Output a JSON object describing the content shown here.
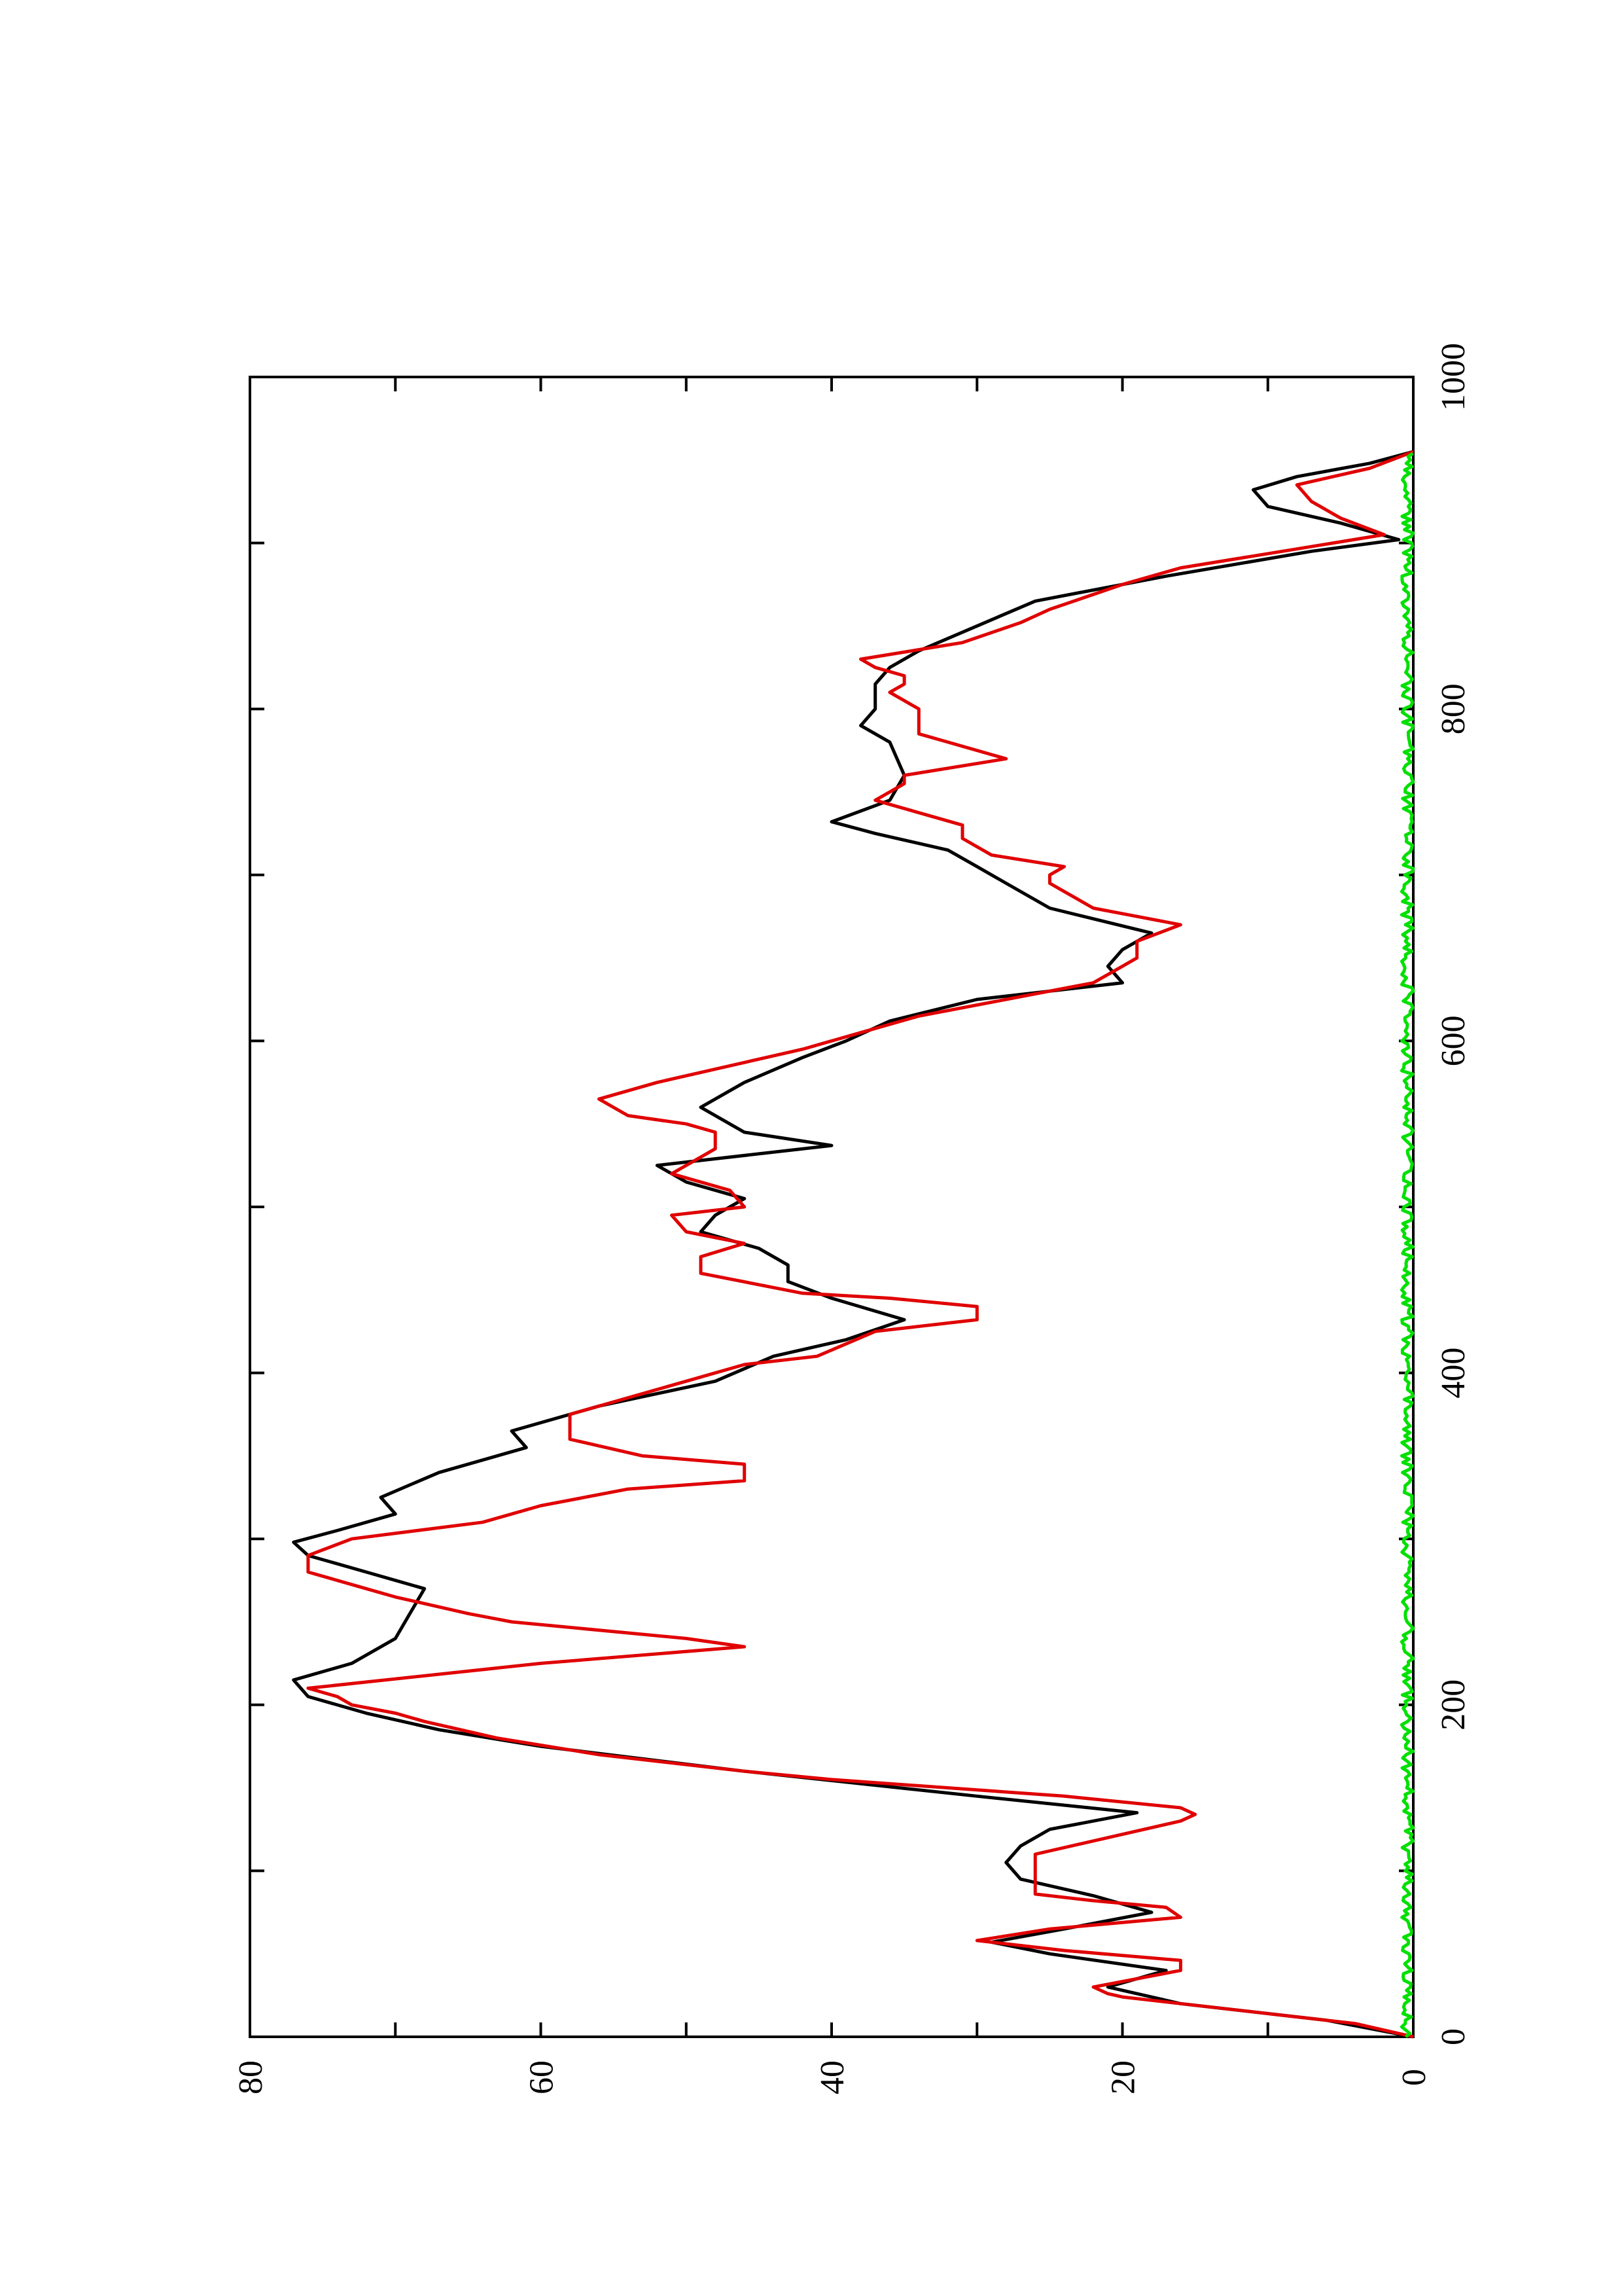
{
  "chart_data": {
    "type": "line",
    "title": "",
    "xlabel": "",
    "ylabel": "",
    "orientation": "rotated 90° counter-clockwise (x axis runs bottom to top, y axis runs right to left)",
    "xlim": [
      0,
      1000
    ],
    "ylim": [
      0,
      80
    ],
    "x_ticks": [
      0,
      200,
      400,
      600,
      800,
      1000
    ],
    "x_tick_labels": [
      "0",
      "200",
      "400",
      "600",
      "800",
      "1000"
    ],
    "y_ticks": [
      0,
      20,
      40,
      60,
      80
    ],
    "y_tick_labels": [
      "0",
      "20",
      "40",
      "60",
      "80"
    ],
    "x_minor_ticks": [
      100,
      300,
      500,
      700,
      900
    ],
    "y_minor_ticks": [
      10,
      30,
      50,
      70
    ],
    "grid": false,
    "legend": "none",
    "series": [
      {
        "color": "#000000",
        "points": [
          [
            0,
            0
          ],
          [
            10,
            6
          ],
          [
            20,
            16
          ],
          [
            30,
            21
          ],
          [
            40,
            17
          ],
          [
            50,
            25
          ],
          [
            57,
            29
          ],
          [
            65,
            24
          ],
          [
            75,
            18
          ],
          [
            85,
            22
          ],
          [
            95,
            27
          ],
          [
            105,
            28
          ],
          [
            115,
            27
          ],
          [
            125,
            25
          ],
          [
            135,
            19
          ],
          [
            145,
            30
          ],
          [
            160,
            46
          ],
          [
            175,
            60
          ],
          [
            185,
            67
          ],
          [
            195,
            72
          ],
          [
            205,
            76
          ],
          [
            215,
            77
          ],
          [
            225,
            73
          ],
          [
            240,
            70
          ],
          [
            255,
            69
          ],
          [
            270,
            68
          ],
          [
            280,
            72
          ],
          [
            290,
            76
          ],
          [
            298,
            77
          ],
          [
            305,
            74
          ],
          [
            315,
            70
          ],
          [
            325,
            71
          ],
          [
            340,
            67
          ],
          [
            355,
            61
          ],
          [
            365,
            62
          ],
          [
            380,
            56
          ],
          [
            395,
            48
          ],
          [
            410,
            44
          ],
          [
            420,
            39
          ],
          [
            432,
            35
          ],
          [
            445,
            40
          ],
          [
            455,
            43
          ],
          [
            465,
            43
          ],
          [
            475,
            45
          ],
          [
            485,
            49
          ],
          [
            495,
            48
          ],
          [
            505,
            46
          ],
          [
            515,
            50
          ],
          [
            525,
            52
          ],
          [
            537,
            40
          ],
          [
            545,
            46
          ],
          [
            560,
            49
          ],
          [
            575,
            46
          ],
          [
            590,
            42
          ],
          [
            600,
            39
          ],
          [
            612,
            36
          ],
          [
            625,
            30
          ],
          [
            635,
            20
          ],
          [
            645,
            21
          ],
          [
            655,
            20
          ],
          [
            665,
            18
          ],
          [
            680,
            25
          ],
          [
            695,
            28
          ],
          [
            705,
            30
          ],
          [
            715,
            32
          ],
          [
            725,
            37
          ],
          [
            732,
            40
          ],
          [
            745,
            36
          ],
          [
            760,
            35
          ],
          [
            780,
            36
          ],
          [
            790,
            38
          ],
          [
            800,
            37
          ],
          [
            815,
            37
          ],
          [
            825,
            36
          ],
          [
            835,
            34
          ],
          [
            850,
            30
          ],
          [
            865,
            26
          ],
          [
            880,
            17
          ],
          [
            895,
            7
          ],
          [
            902,
            1
          ],
          [
            912,
            5
          ],
          [
            922,
            10
          ],
          [
            932,
            11
          ],
          [
            940,
            8
          ],
          [
            948,
            3
          ],
          [
            955,
            0
          ]
        ]
      },
      {
        "color": "#e00000",
        "points": [
          [
            0,
            0
          ],
          [
            8,
            4
          ],
          [
            12,
            8
          ],
          [
            20,
            16
          ],
          [
            24,
            20
          ],
          [
            26,
            21
          ],
          [
            30,
            22
          ],
          [
            40,
            16
          ],
          [
            46,
            16
          ],
          [
            52,
            24
          ],
          [
            55,
            27
          ],
          [
            58,
            30
          ],
          [
            65,
            25
          ],
          [
            72,
            16
          ],
          [
            78,
            17
          ],
          [
            82,
            22
          ],
          [
            86,
            26
          ],
          [
            110,
            26
          ],
          [
            130,
            16
          ],
          [
            134,
            15
          ],
          [
            138,
            16
          ],
          [
            145,
            24
          ],
          [
            155,
            40
          ],
          [
            160,
            46
          ],
          [
            170,
            56
          ],
          [
            180,
            63
          ],
          [
            190,
            68
          ],
          [
            195,
            70
          ],
          [
            200,
            73
          ],
          [
            205,
            74
          ],
          [
            210,
            76
          ],
          [
            225,
            60
          ],
          [
            235,
            46
          ],
          [
            240,
            50
          ],
          [
            250,
            62
          ],
          [
            255,
            65
          ],
          [
            265,
            70
          ],
          [
            270,
            72
          ],
          [
            280,
            76
          ],
          [
            290,
            76
          ],
          [
            300,
            73
          ],
          [
            310,
            64
          ],
          [
            320,
            60
          ],
          [
            330,
            54
          ],
          [
            335,
            46
          ],
          [
            345,
            46
          ],
          [
            350,
            53
          ],
          [
            360,
            58
          ],
          [
            375,
            58
          ],
          [
            385,
            54
          ],
          [
            395,
            50
          ],
          [
            405,
            46
          ],
          [
            410,
            41
          ],
          [
            425,
            37
          ],
          [
            432,
            30
          ],
          [
            440,
            30
          ],
          [
            445,
            36
          ],
          [
            448,
            42
          ],
          [
            460,
            49
          ],
          [
            470,
            49
          ],
          [
            478,
            46
          ],
          [
            485,
            50
          ],
          [
            495,
            51
          ],
          [
            500,
            46
          ],
          [
            510,
            47
          ],
          [
            520,
            51
          ],
          [
            535,
            48
          ],
          [
            545,
            48
          ],
          [
            550,
            50
          ],
          [
            555,
            54
          ],
          [
            565,
            56
          ],
          [
            575,
            52
          ],
          [
            585,
            47
          ],
          [
            595,
            42
          ],
          [
            605,
            38
          ],
          [
            615,
            34
          ],
          [
            625,
            28
          ],
          [
            635,
            22
          ],
          [
            645,
            20
          ],
          [
            650,
            19
          ],
          [
            660,
            19
          ],
          [
            670,
            16
          ],
          [
            680,
            22
          ],
          [
            690,
            24
          ],
          [
            695,
            25
          ],
          [
            700,
            25
          ],
          [
            705,
            24
          ],
          [
            712,
            29
          ],
          [
            722,
            31
          ],
          [
            730,
            31
          ],
          [
            745,
            37
          ],
          [
            755,
            35
          ],
          [
            760,
            35
          ],
          [
            770,
            28
          ],
          [
            780,
            32
          ],
          [
            785,
            34
          ],
          [
            800,
            34
          ],
          [
            810,
            36
          ],
          [
            815,
            35
          ],
          [
            820,
            35
          ],
          [
            825,
            37
          ],
          [
            830,
            38
          ],
          [
            840,
            31
          ],
          [
            852,
            27
          ],
          [
            860,
            25
          ],
          [
            875,
            20
          ],
          [
            885,
            16
          ],
          [
            895,
            9
          ],
          [
            905,
            2
          ],
          [
            915,
            5
          ],
          [
            925,
            7
          ],
          [
            935,
            8
          ],
          [
            945,
            3
          ],
          [
            955,
            0
          ]
        ]
      },
      {
        "color": "#00e000",
        "baseline": 0,
        "amplitude": 0.8,
        "description_note": "noisy near-zero series across full x range"
      }
    ]
  }
}
